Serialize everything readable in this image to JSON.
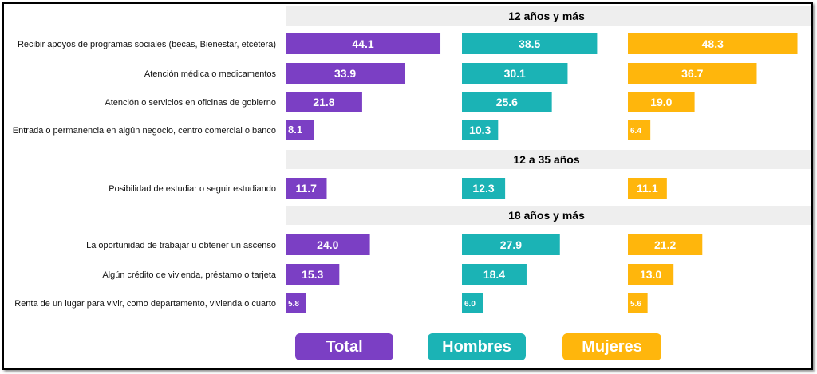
{
  "chart_data": {
    "type": "bar",
    "orientation": "horizontal",
    "legend_position": "bottom",
    "series": [
      {
        "name": "Total",
        "color": "#7B3FC4"
      },
      {
        "name": "Hombres",
        "color": "#1BB3B5"
      },
      {
        "name": "Mujeres",
        "color": "#FFB60C"
      }
    ],
    "groups": [
      {
        "title": "12 años y más",
        "rows": [
          {
            "label": "Recibir apoyos de programas sociales (becas, Bienestar, etcétera)",
            "values": [
              44.1,
              38.5,
              48.3
            ]
          },
          {
            "label": "Atención médica o medicamentos",
            "values": [
              33.9,
              30.1,
              36.7
            ]
          },
          {
            "label": "Atención o servicios en oficinas de gobierno",
            "values": [
              21.8,
              25.6,
              19.0
            ]
          },
          {
            "label": "Entrada o permanencia en algún negocio, centro comercial o banco",
            "values": [
              8.1,
              10.3,
              6.4
            ]
          }
        ]
      },
      {
        "title": "12 a 35 años",
        "rows": [
          {
            "label": "Posibilidad de estudiar o seguir estudiando",
            "values": [
              11.7,
              12.3,
              11.1
            ]
          }
        ]
      },
      {
        "title": "18 años y más",
        "rows": [
          {
            "label": "La oportunidad de trabajar u obtener un ascenso",
            "values": [
              24.0,
              27.9,
              21.2
            ]
          },
          {
            "label": "Algún crédito de vivienda, préstamo o tarjeta",
            "values": [
              15.3,
              18.4,
              13.0
            ]
          },
          {
            "label": "Renta de un lugar para vivir, como departamento, vivienda o cuarto",
            "values": [
              5.8,
              6.0,
              5.6
            ]
          }
        ]
      }
    ]
  }
}
